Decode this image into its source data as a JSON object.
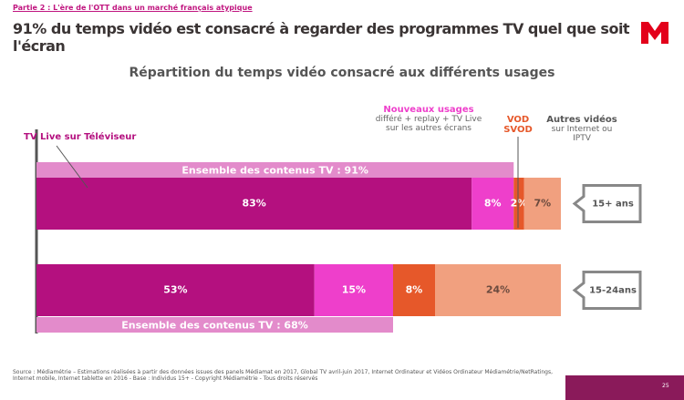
{
  "header": {
    "section": "Partie 2 : L'ère de l'OTT dans un marché français atypique",
    "title": "91% du temps vidéo est consacré à regarder des programmes TV quel que soit l'écran",
    "page": "25"
  },
  "chart_data": {
    "type": "bar",
    "orientation": "horizontal",
    "stacked": true,
    "title": "Répartition du temps vidéo consacré aux différents usages",
    "categories": [
      "15+ ans",
      "15-24ans"
    ],
    "xlim": [
      0,
      100
    ],
    "series": [
      {
        "name": "TV Live sur Téléviseur",
        "color": "#b4107f",
        "values": [
          83,
          53
        ],
        "value_labels": [
          "83%",
          "53%"
        ]
      },
      {
        "name": "Nouveaux usages",
        "description": "différé + replay + TV Live sur les autres écrans",
        "color": "#ee3fcb",
        "values": [
          8,
          15
        ],
        "value_labels": [
          "8%",
          "15%"
        ]
      },
      {
        "name": "VOD SVOD",
        "color": "#e6582a",
        "values": [
          2,
          8
        ],
        "value_labels": [
          "2%",
          "8%"
        ]
      },
      {
        "name": "Autres vidéos",
        "description": "sur Internet ou IPTV",
        "color": "#f1a07f",
        "values": [
          7,
          24
        ],
        "value_labels": [
          "7%",
          "24%"
        ]
      }
    ],
    "totals": [
      {
        "value": 91,
        "label": "Ensemble des contenus TV : 91%"
      },
      {
        "value": 68,
        "label": "Ensemble des contenus TV : 68%"
      }
    ],
    "total_color": "#e38bcb"
  },
  "source": "Source : Médiamétrie – Estimations réalisées à partir des données issues des panels Médiamat en 2017, Global TV avril-juin 2017, Internet Ordinateur et Vidéos Ordinateur Médiamétrie/NetRatings, Internet mobile, Internet tablette en 2016 - Base : Individus 15+ - Copyright Médiamétrie - Tous droits réservés"
}
